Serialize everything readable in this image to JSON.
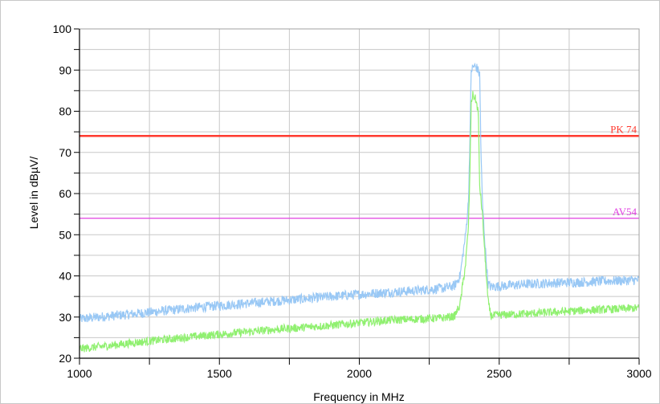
{
  "chart_data": {
    "type": "line",
    "xlabel": "Frequency in MHz",
    "ylabel": "Level in dBµV/",
    "xlim": [
      1000,
      3000
    ],
    "ylim": [
      20,
      100
    ],
    "x_ticks": [
      1000,
      1500,
      2000,
      2500,
      3000
    ],
    "y_ticks": [
      20,
      30,
      40,
      50,
      60,
      70,
      80,
      90,
      100
    ],
    "grid": true,
    "limit_lines": [
      {
        "name": "PK 74",
        "label": "PK 74",
        "value": 74,
        "color": "#ff3b30"
      },
      {
        "name": "AV54",
        "label": "AV54",
        "value": 54,
        "color": "#e040e0"
      }
    ],
    "series": [
      {
        "color": "#99c8f5",
        "x": [
          1000,
          1100,
          1200,
          1300,
          1400,
          1500,
          1600,
          1700,
          1800,
          1900,
          2000,
          2100,
          2200,
          2300,
          2340,
          2360,
          2380,
          2390,
          2395,
          2400,
          2410,
          2420,
          2430,
          2435,
          2440,
          2450,
          2460,
          2470,
          2500,
          2600,
          2700,
          2800,
          2900,
          3000
        ],
        "y": [
          29.5,
          30.2,
          30.8,
          31.5,
          32.2,
          32.8,
          33.3,
          33.9,
          34.4,
          35.0,
          35.5,
          36.0,
          36.4,
          37.0,
          37.6,
          40,
          50,
          58,
          72,
          90,
          91,
          90.5,
          89,
          70,
          58,
          47,
          38,
          37.3,
          37.5,
          38.0,
          38.3,
          38.5,
          38.8,
          39.0
        ],
        "noise": 1.2
      },
      {
        "color": "#90f070",
        "x": [
          1000,
          1100,
          1200,
          1300,
          1400,
          1500,
          1600,
          1700,
          1800,
          1900,
          2000,
          2100,
          2200,
          2300,
          2340,
          2360,
          2380,
          2390,
          2395,
          2400,
          2405,
          2415,
          2425,
          2430,
          2440,
          2450,
          2460,
          2470,
          2500,
          2600,
          2700,
          2800,
          2900,
          3000
        ],
        "y": [
          22.3,
          23.0,
          23.8,
          24.5,
          25.2,
          25.8,
          26.4,
          27.0,
          27.5,
          28.0,
          28.6,
          29.2,
          29.5,
          29.8,
          30.2,
          33,
          43,
          52,
          64,
          82,
          84,
          83,
          80,
          62,
          55,
          44,
          34,
          30.3,
          30.5,
          30.8,
          31.2,
          31.6,
          31.9,
          32.2
        ],
        "noise": 1.0
      }
    ]
  }
}
